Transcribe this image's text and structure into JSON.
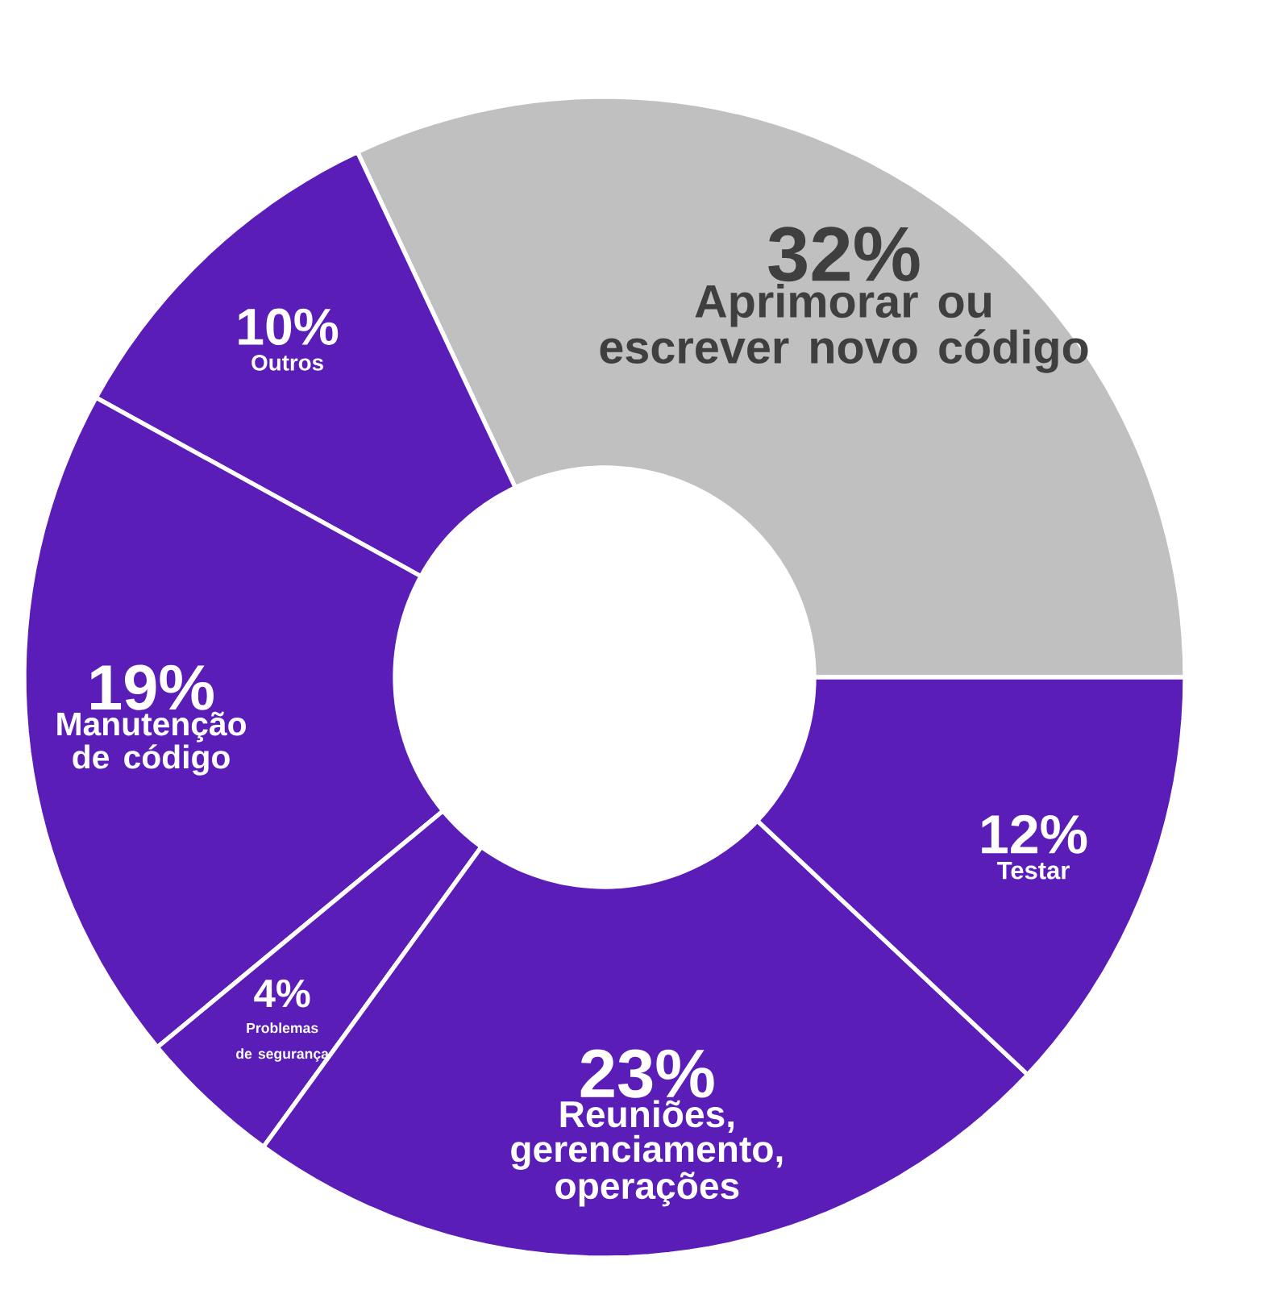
{
  "chart_data": {
    "type": "donut",
    "categories": [
      "Aprimorar ou escrever novo código",
      "Outros",
      "Manutenção de código",
      "Problemas de segurança",
      "Reuniões, gerenciamento, operações",
      "Testar"
    ],
    "values": [
      32,
      10,
      19,
      4,
      23,
      12
    ],
    "value_labels": [
      "32%",
      "10%",
      "19%",
      "4%",
      "23%",
      "12%"
    ],
    "colors": [
      "#c0c0c0",
      "#5b1db8",
      "#5b1db8",
      "#5b1db8",
      "#5b1db8",
      "#5b1db8"
    ]
  }
}
